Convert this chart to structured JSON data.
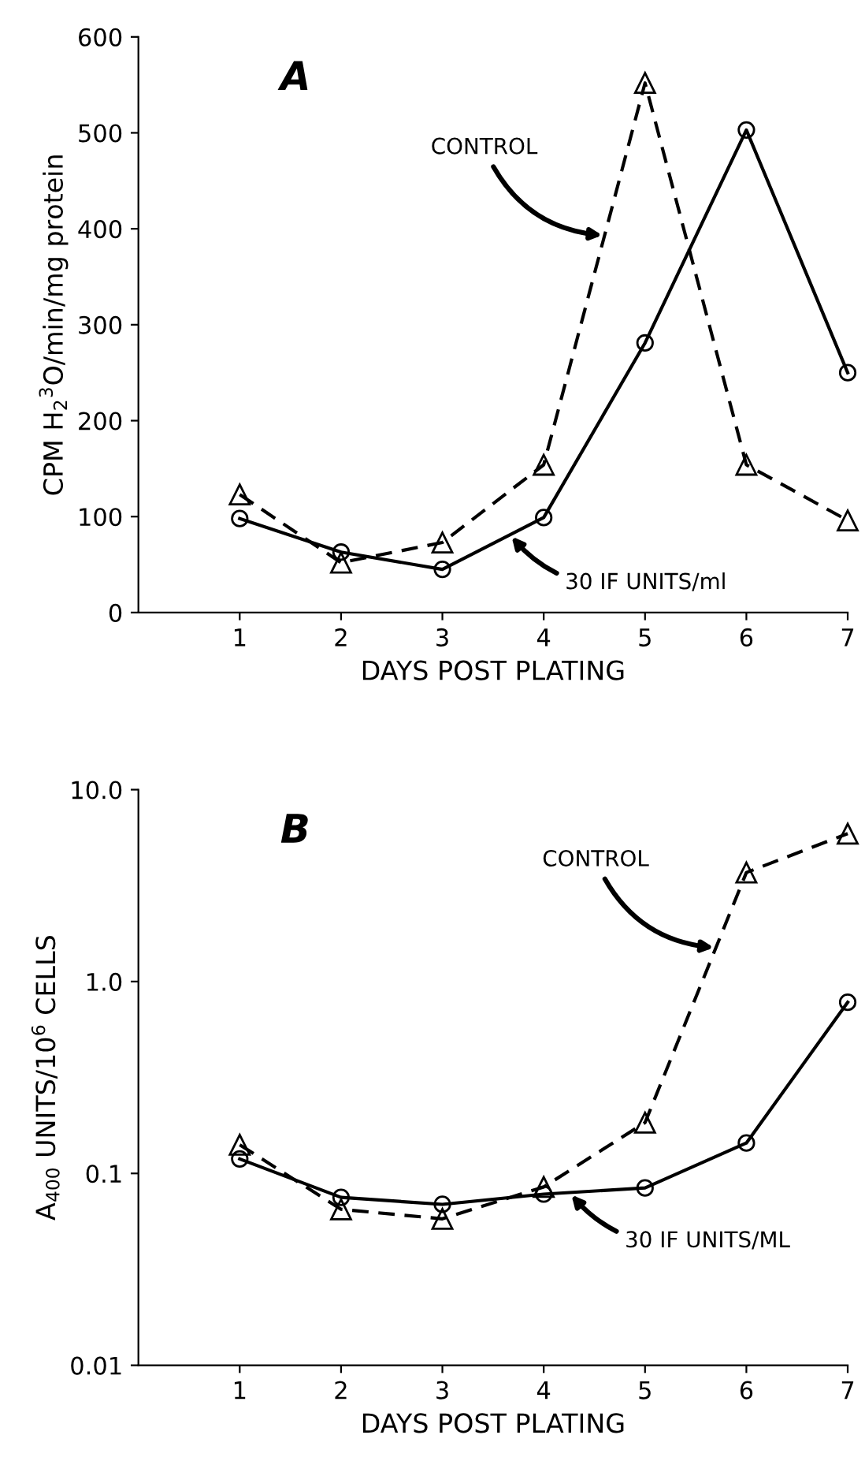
{
  "chart_data": [
    {
      "type": "line",
      "title": "A",
      "xlabel": "DAYS POST PLATING",
      "ylabel": "CPM H$_{2}$$^{3}$O/min/mg protein",
      "x": [
        1,
        2,
        3,
        4,
        5,
        6,
        7
      ],
      "xlim": [
        0,
        7
      ],
      "xticks": [
        1,
        2,
        3,
        4,
        5,
        6,
        7
      ],
      "ylim": [
        0,
        600
      ],
      "yticks": [
        0,
        100,
        200,
        300,
        400,
        500,
        600
      ],
      "grid": false,
      "legend": false,
      "series": [
        {
          "color": "#000000",
          "marker": "triangle",
          "line_style": "dashed",
          "values": [
            123,
            52,
            73,
            154,
            552,
            154,
            96
          ]
        },
        {
          "color": "#000000",
          "marker": "circle",
          "line_style": "solid",
          "values": [
            98,
            63,
            45,
            99,
            281,
            503,
            250
          ]
        }
      ],
      "annotations": [
        {
          "text": "CONTROL",
          "x": 4.6,
          "y": 393
        },
        {
          "text": "30 IF UNITS/ml",
          "x": 3.67,
          "y": 81
        }
      ]
    },
    {
      "type": "line",
      "title": "B",
      "xlabel": "DAYS POST PLATING",
      "ylabel": "A$_{400}$ UNITS/10$^{6}$ CELLS",
      "log": "y",
      "x": [
        1,
        2,
        3,
        4,
        5,
        6,
        7
      ],
      "xlim": [
        0,
        7
      ],
      "xticks": [
        1,
        2,
        3,
        4,
        5,
        6,
        7
      ],
      "ylim": [
        0.01,
        10
      ],
      "yticks": [
        {
          "value": 0.01,
          "label": "0.01"
        },
        0.1,
        {
          "value": 1,
          "label": "1.0"
        },
        {
          "value": 10,
          "label": "10.0"
        }
      ],
      "grid": false,
      "legend": false,
      "series": [
        {
          "color": "#000000",
          "marker": "triangle",
          "line_style": "dashed",
          "values": [
            0.141,
            0.065,
            0.058,
            0.085,
            0.184,
            3.7,
            5.9
          ]
        },
        {
          "color": "#000000",
          "marker": "circle",
          "line_style": "solid",
          "values": [
            0.119,
            0.075,
            0.069,
            0.078,
            0.084,
            0.144,
            0.78
          ]
        }
      ],
      "annotations": [
        {
          "text": "CONTROL",
          "x": 5.7,
          "y": 1.5
        },
        {
          "text": "30 IF UNITS/ML",
          "x": 4.26,
          "y": 0.079
        }
      ]
    }
  ]
}
